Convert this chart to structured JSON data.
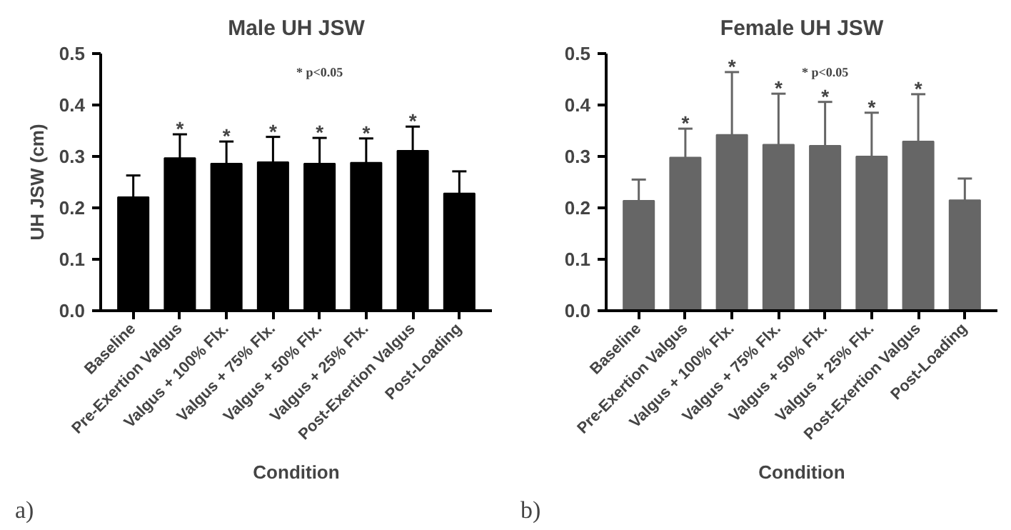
{
  "chart_data": [
    {
      "type": "bar",
      "title": "Male UH JSW",
      "xlabel": "Condition",
      "ylabel": "UH JSW (cm)",
      "categories": [
        "Baseline",
        "Pre-Exertion Valgus",
        "Valgus + 100% Flx.",
        "Valgus + 75% Flx.",
        "Valgus + 50% Flx.",
        "Valgus + 25% Flx.",
        "Post-Exertion Valgus",
        "Post-Loading"
      ],
      "values": [
        0.221,
        0.297,
        0.286,
        0.289,
        0.286,
        0.288,
        0.311,
        0.228
      ],
      "errors": [
        [
          0.221,
          0.263
        ],
        [
          0.297,
          0.343
        ],
        [
          0.286,
          0.329
        ],
        [
          0.289,
          0.338
        ],
        [
          0.286,
          0.336
        ],
        [
          0.288,
          0.335
        ],
        [
          0.311,
          0.358
        ],
        [
          0.228,
          0.271
        ]
      ],
      "color": "#000000",
      "ylim": [
        0,
        0.5
      ],
      "yticks": [
        {
          "value": 0,
          "label": "0.0"
        },
        0.1,
        0.2,
        0.3,
        0.4,
        0.5
      ],
      "grid": false,
      "annotations": [
        "* p<0.05",
        "a)",
        {
          "text": "*",
          "x": "Pre-Exertion Valgus",
          "y": 0.343
        },
        {
          "text": "*",
          "x": "Valgus + 100% Flx.",
          "y": 0.329
        },
        {
          "text": "*",
          "x": "Valgus + 75% Flx.",
          "y": 0.338
        },
        {
          "text": "*",
          "x": "Valgus + 50% Flx.",
          "y": 0.336
        },
        {
          "text": "*",
          "x": "Valgus + 25% Flx.",
          "y": 0.335
        },
        {
          "text": "*",
          "x": "Post-Exertion Valgus",
          "y": 0.358
        }
      ]
    },
    {
      "type": "bar",
      "title": "Female UH JSW",
      "xlabel": "Condition",
      "categories": [
        "Baseline",
        "Pre-Exertion Valgus",
        "Valgus + 100% Flx.",
        "Valgus + 75% Flx.",
        "Valgus + 50% Flx.",
        "Valgus + 25% Flx.",
        "Post-Exertion Valgus",
        "Post-Loading"
      ],
      "values": [
        0.214,
        0.298,
        0.342,
        0.323,
        0.321,
        0.3,
        0.329,
        0.215
      ],
      "errors": [
        [
          0.214,
          0.255
        ],
        [
          0.298,
          0.354
        ],
        [
          0.342,
          0.464
        ],
        [
          0.323,
          0.422
        ],
        [
          0.321,
          0.406
        ],
        [
          0.3,
          0.385
        ],
        [
          0.329,
          0.421
        ],
        [
          0.215,
          0.257
        ]
      ],
      "color": "#666666",
      "ylim": [
        0,
        0.5
      ],
      "yticks": [
        {
          "value": 0,
          "label": "0.0"
        },
        0.1,
        0.2,
        0.3,
        0.4,
        0.5
      ],
      "grid": false,
      "annotations": [
        "* p<0.05",
        "b)",
        {
          "text": "*",
          "x": "Pre-Exertion Valgus",
          "y": 0.354
        },
        {
          "text": "*",
          "x": "Valgus + 100% Flx.",
          "y": 0.464
        },
        {
          "text": "*",
          "x": "Valgus + 75% Flx.",
          "y": 0.422
        },
        {
          "text": "*",
          "x": "Valgus + 50% Flx.",
          "y": 0.406
        },
        {
          "text": "*",
          "x": "Valgus + 25% Flx.",
          "y": 0.385
        },
        {
          "text": "*",
          "x": "Post-Exertion Valgus",
          "y": 0.421
        }
      ]
    }
  ]
}
